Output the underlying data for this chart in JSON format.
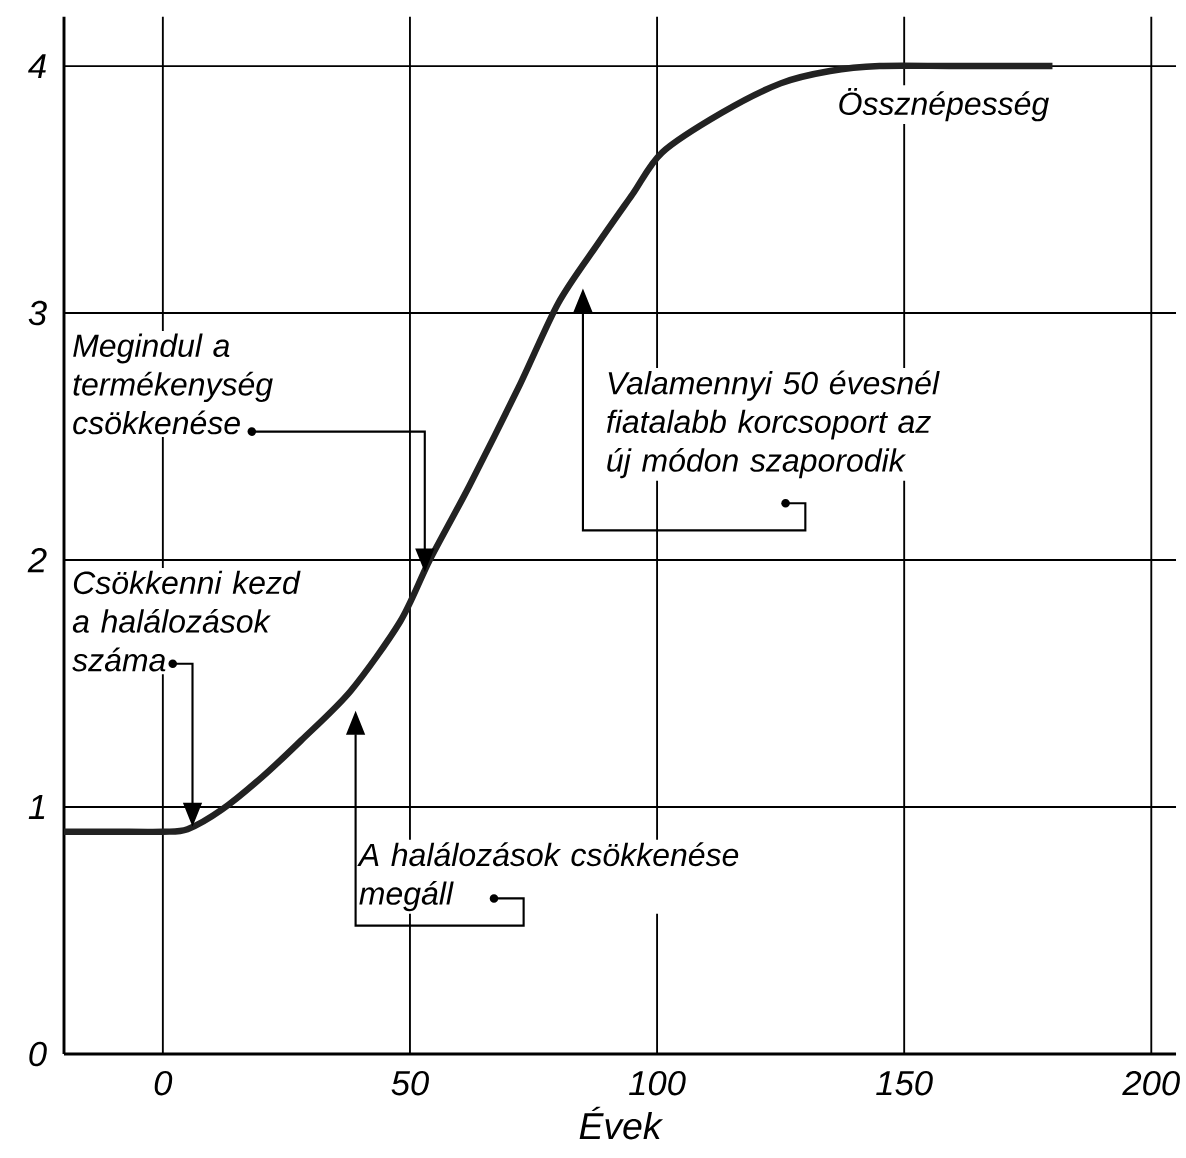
{
  "chart_data": {
    "type": "line",
    "xlabel": "Évek",
    "x": [
      -20,
      -10,
      0,
      5,
      12,
      20,
      28,
      38,
      48,
      54,
      62,
      72,
      80,
      88,
      95,
      101,
      113,
      125,
      135,
      145,
      160,
      180
    ],
    "series": [
      {
        "name": "Össznépesség",
        "color": "#222222",
        "values": [
          0.9,
          0.9,
          0.9,
          0.91,
          0.99,
          1.12,
          1.27,
          1.47,
          1.75,
          2.0,
          2.3,
          2.7,
          3.04,
          3.28,
          3.48,
          3.65,
          3.81,
          3.93,
          3.98,
          4.0,
          4.0,
          4.0
        ]
      }
    ],
    "xlim": [
      -20,
      205
    ],
    "ylim": [
      0,
      4.2
    ],
    "xticks": [
      0,
      50,
      100,
      150,
      200
    ],
    "yticks": [
      0,
      1,
      2,
      3,
      4
    ],
    "grid": true,
    "marker": "none",
    "line_style": "solid",
    "annotations": [
      "Csökkenni kezd a halálozások száma",
      "A halálozások csökkenése megáll",
      "Megindul a termékenység csökkenése",
      "Valamennyi 50 évesnél fiatalabb korcsoport az új módon szaporodik"
    ]
  }
}
